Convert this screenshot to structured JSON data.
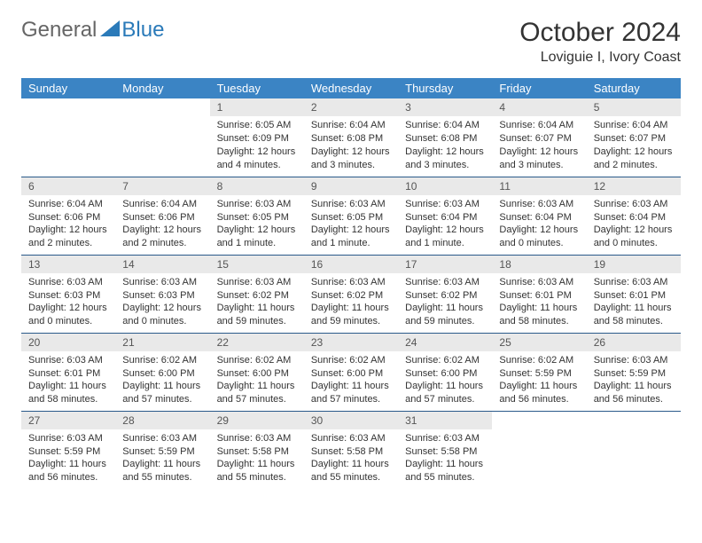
{
  "logo": {
    "text1": "General",
    "text2": "Blue"
  },
  "title": "October 2024",
  "location": "Loviguie I, Ivory Coast",
  "colors": {
    "header_bg": "#3b84c4",
    "header_text": "#ffffff",
    "daynum_bg": "#e9e9e9",
    "cell_border": "#2a5a8a",
    "logo_blue": "#2a7ab9"
  },
  "weekdays": [
    "Sunday",
    "Monday",
    "Tuesday",
    "Wednesday",
    "Thursday",
    "Friday",
    "Saturday"
  ],
  "cells": [
    {
      "day": "",
      "sunrise": "",
      "sunset": "",
      "daylight": ""
    },
    {
      "day": "",
      "sunrise": "",
      "sunset": "",
      "daylight": ""
    },
    {
      "day": "1",
      "sunrise": "Sunrise: 6:05 AM",
      "sunset": "Sunset: 6:09 PM",
      "daylight": "Daylight: 12 hours and 4 minutes."
    },
    {
      "day": "2",
      "sunrise": "Sunrise: 6:04 AM",
      "sunset": "Sunset: 6:08 PM",
      "daylight": "Daylight: 12 hours and 3 minutes."
    },
    {
      "day": "3",
      "sunrise": "Sunrise: 6:04 AM",
      "sunset": "Sunset: 6:08 PM",
      "daylight": "Daylight: 12 hours and 3 minutes."
    },
    {
      "day": "4",
      "sunrise": "Sunrise: 6:04 AM",
      "sunset": "Sunset: 6:07 PM",
      "daylight": "Daylight: 12 hours and 3 minutes."
    },
    {
      "day": "5",
      "sunrise": "Sunrise: 6:04 AM",
      "sunset": "Sunset: 6:07 PM",
      "daylight": "Daylight: 12 hours and 2 minutes."
    },
    {
      "day": "6",
      "sunrise": "Sunrise: 6:04 AM",
      "sunset": "Sunset: 6:06 PM",
      "daylight": "Daylight: 12 hours and 2 minutes."
    },
    {
      "day": "7",
      "sunrise": "Sunrise: 6:04 AM",
      "sunset": "Sunset: 6:06 PM",
      "daylight": "Daylight: 12 hours and 2 minutes."
    },
    {
      "day": "8",
      "sunrise": "Sunrise: 6:03 AM",
      "sunset": "Sunset: 6:05 PM",
      "daylight": "Daylight: 12 hours and 1 minute."
    },
    {
      "day": "9",
      "sunrise": "Sunrise: 6:03 AM",
      "sunset": "Sunset: 6:05 PM",
      "daylight": "Daylight: 12 hours and 1 minute."
    },
    {
      "day": "10",
      "sunrise": "Sunrise: 6:03 AM",
      "sunset": "Sunset: 6:04 PM",
      "daylight": "Daylight: 12 hours and 1 minute."
    },
    {
      "day": "11",
      "sunrise": "Sunrise: 6:03 AM",
      "sunset": "Sunset: 6:04 PM",
      "daylight": "Daylight: 12 hours and 0 minutes."
    },
    {
      "day": "12",
      "sunrise": "Sunrise: 6:03 AM",
      "sunset": "Sunset: 6:04 PM",
      "daylight": "Daylight: 12 hours and 0 minutes."
    },
    {
      "day": "13",
      "sunrise": "Sunrise: 6:03 AM",
      "sunset": "Sunset: 6:03 PM",
      "daylight": "Daylight: 12 hours and 0 minutes."
    },
    {
      "day": "14",
      "sunrise": "Sunrise: 6:03 AM",
      "sunset": "Sunset: 6:03 PM",
      "daylight": "Daylight: 12 hours and 0 minutes."
    },
    {
      "day": "15",
      "sunrise": "Sunrise: 6:03 AM",
      "sunset": "Sunset: 6:02 PM",
      "daylight": "Daylight: 11 hours and 59 minutes."
    },
    {
      "day": "16",
      "sunrise": "Sunrise: 6:03 AM",
      "sunset": "Sunset: 6:02 PM",
      "daylight": "Daylight: 11 hours and 59 minutes."
    },
    {
      "day": "17",
      "sunrise": "Sunrise: 6:03 AM",
      "sunset": "Sunset: 6:02 PM",
      "daylight": "Daylight: 11 hours and 59 minutes."
    },
    {
      "day": "18",
      "sunrise": "Sunrise: 6:03 AM",
      "sunset": "Sunset: 6:01 PM",
      "daylight": "Daylight: 11 hours and 58 minutes."
    },
    {
      "day": "19",
      "sunrise": "Sunrise: 6:03 AM",
      "sunset": "Sunset: 6:01 PM",
      "daylight": "Daylight: 11 hours and 58 minutes."
    },
    {
      "day": "20",
      "sunrise": "Sunrise: 6:03 AM",
      "sunset": "Sunset: 6:01 PM",
      "daylight": "Daylight: 11 hours and 58 minutes."
    },
    {
      "day": "21",
      "sunrise": "Sunrise: 6:02 AM",
      "sunset": "Sunset: 6:00 PM",
      "daylight": "Daylight: 11 hours and 57 minutes."
    },
    {
      "day": "22",
      "sunrise": "Sunrise: 6:02 AM",
      "sunset": "Sunset: 6:00 PM",
      "daylight": "Daylight: 11 hours and 57 minutes."
    },
    {
      "day": "23",
      "sunrise": "Sunrise: 6:02 AM",
      "sunset": "Sunset: 6:00 PM",
      "daylight": "Daylight: 11 hours and 57 minutes."
    },
    {
      "day": "24",
      "sunrise": "Sunrise: 6:02 AM",
      "sunset": "Sunset: 6:00 PM",
      "daylight": "Daylight: 11 hours and 57 minutes."
    },
    {
      "day": "25",
      "sunrise": "Sunrise: 6:02 AM",
      "sunset": "Sunset: 5:59 PM",
      "daylight": "Daylight: 11 hours and 56 minutes."
    },
    {
      "day": "26",
      "sunrise": "Sunrise: 6:03 AM",
      "sunset": "Sunset: 5:59 PM",
      "daylight": "Daylight: 11 hours and 56 minutes."
    },
    {
      "day": "27",
      "sunrise": "Sunrise: 6:03 AM",
      "sunset": "Sunset: 5:59 PM",
      "daylight": "Daylight: 11 hours and 56 minutes."
    },
    {
      "day": "28",
      "sunrise": "Sunrise: 6:03 AM",
      "sunset": "Sunset: 5:59 PM",
      "daylight": "Daylight: 11 hours and 55 minutes."
    },
    {
      "day": "29",
      "sunrise": "Sunrise: 6:03 AM",
      "sunset": "Sunset: 5:58 PM",
      "daylight": "Daylight: 11 hours and 55 minutes."
    },
    {
      "day": "30",
      "sunrise": "Sunrise: 6:03 AM",
      "sunset": "Sunset: 5:58 PM",
      "daylight": "Daylight: 11 hours and 55 minutes."
    },
    {
      "day": "31",
      "sunrise": "Sunrise: 6:03 AM",
      "sunset": "Sunset: 5:58 PM",
      "daylight": "Daylight: 11 hours and 55 minutes."
    },
    {
      "day": "",
      "sunrise": "",
      "sunset": "",
      "daylight": ""
    },
    {
      "day": "",
      "sunrise": "",
      "sunset": "",
      "daylight": ""
    }
  ]
}
